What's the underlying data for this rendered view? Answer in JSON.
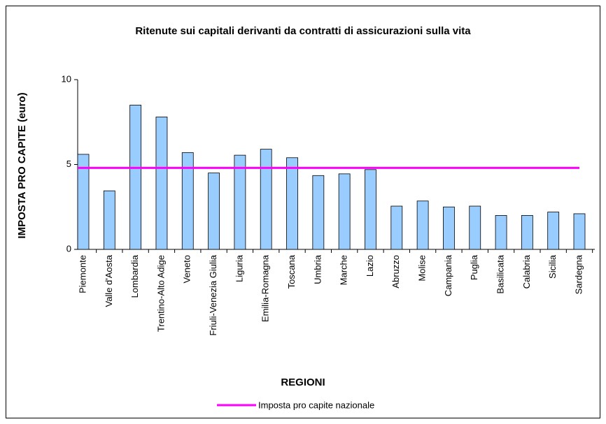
{
  "chart_data": {
    "type": "bar",
    "title": "Ritenute sui capitali derivanti da contratti di assicurazioni sulla vita",
    "x_label": "REGIONI",
    "y_label": "IMPOSTA PRO CAPITE (euro)",
    "categories": [
      "Piemonte",
      "Valle d'Aosta",
      "Lombardia",
      "Trentino-Alto Adige",
      "Veneto",
      "Friuli-Venezia Giulia",
      "Liguria",
      "Emilia-Romagna",
      "Toscana",
      "Umbria",
      "Marche",
      "Lazio",
      "Abruzzo",
      "Molise",
      "Campania",
      "Puglia",
      "Basilicata",
      "Calabria",
      "Sicilia",
      "Sardegna"
    ],
    "values": [
      5.6,
      3.45,
      8.5,
      7.8,
      5.7,
      4.5,
      5.55,
      5.9,
      5.4,
      4.35,
      4.45,
      4.7,
      2.55,
      2.85,
      2.5,
      2.55,
      2.0,
      2.0,
      2.2,
      2.1
    ],
    "color": "#99ccff",
    "reference_line": {
      "name": "Imposta pro capite nazionale",
      "value": 4.8,
      "color": "#ff00ff"
    },
    "ylim": [
      0,
      10
    ],
    "yticks": [
      0,
      5,
      10
    ],
    "legend": "bottom"
  }
}
